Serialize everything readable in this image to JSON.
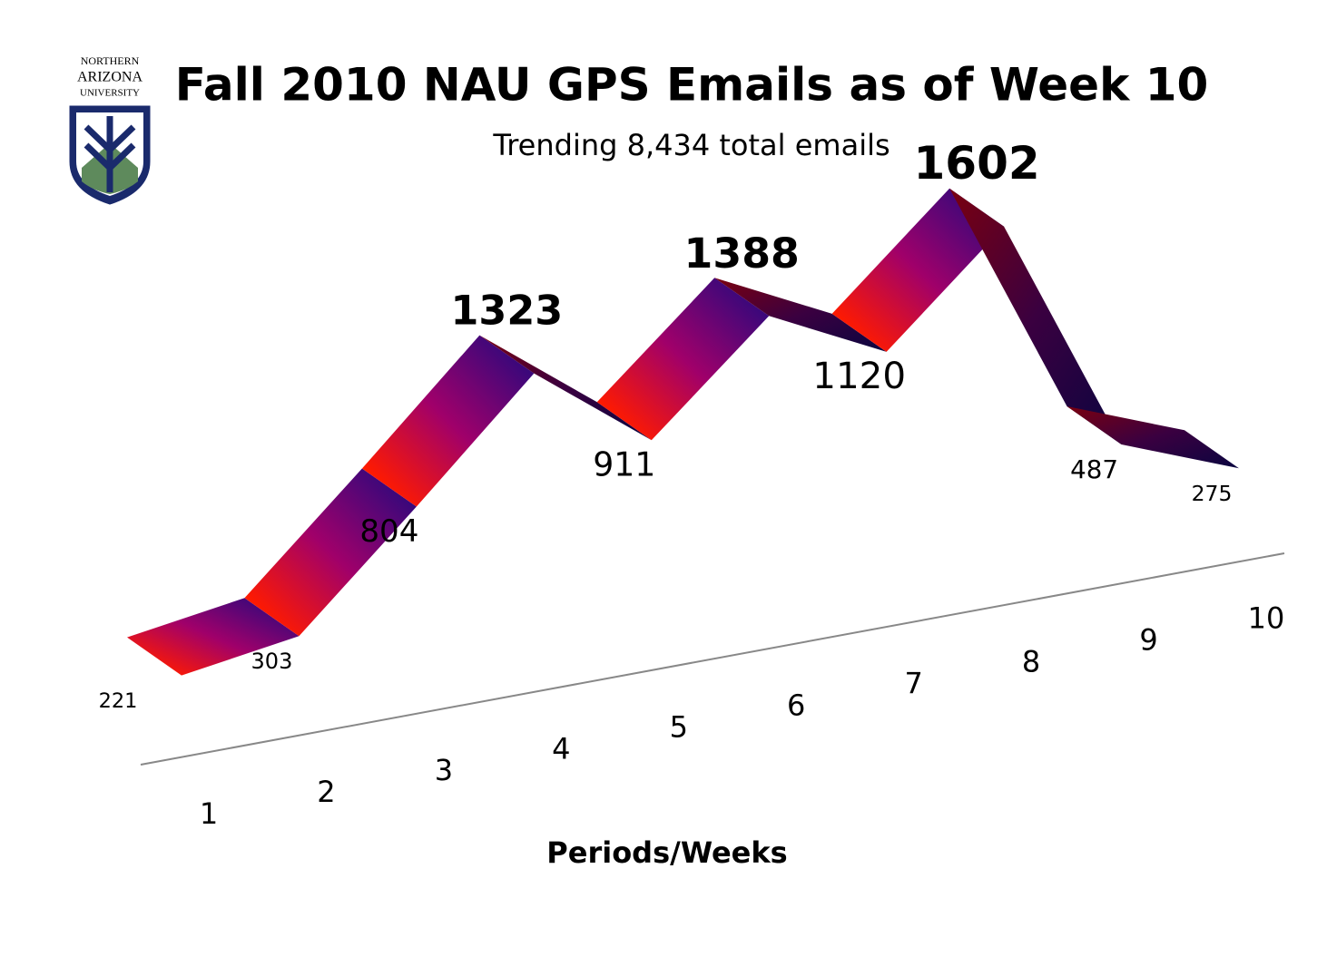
{
  "logo": {
    "lines": [
      "NORTHERN",
      "ARIZONA",
      "UNIVERSITY"
    ]
  },
  "chart_data": {
    "type": "ribbon",
    "title": "Fall 2010 NAU GPS Emails as of Week 10",
    "subtitle": "Trending 8,434 total emails",
    "x_label": "Periods/Weeks",
    "categories": [
      "1",
      "2",
      "3",
      "4",
      "5",
      "6",
      "7",
      "8",
      "9",
      "10"
    ],
    "values": [
      221,
      303,
      804,
      1323,
      911,
      1388,
      1120,
      1602,
      487,
      275
    ]
  }
}
